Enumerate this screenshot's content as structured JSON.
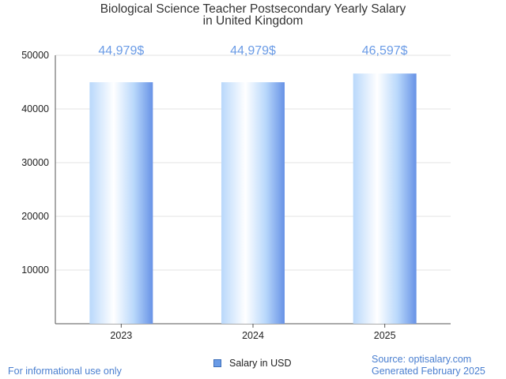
{
  "chart_data": {
    "type": "bar",
    "title_lines": [
      "Biological Science Teacher Postsecondary Yearly Salary",
      "in United Kingdom"
    ],
    "categories": [
      "2023",
      "2024",
      "2025"
    ],
    "series": [
      {
        "name": "Salary in USD",
        "values": [
          44979,
          44979,
          46597
        ],
        "labels": [
          "44,979$",
          "44,979$",
          "46,597$"
        ]
      }
    ],
    "y_ticks": [
      10000,
      20000,
      30000,
      40000,
      50000
    ],
    "ylim": [
      0,
      50000
    ],
    "grid": true,
    "legend_position": "bottom-center",
    "xlabel": "",
    "ylabel": ""
  },
  "colors": {
    "label": "#6a9be6",
    "bar_light": "#ffffff",
    "bar_mid": "#b9d8fb",
    "bar_dark": "#6792e6",
    "grid": "#e3e3e3",
    "axis": "#555555"
  },
  "footer": {
    "disclaimer": "For informational use only",
    "source": "Source: optisalary.com",
    "generated": "Generated February 2025"
  }
}
